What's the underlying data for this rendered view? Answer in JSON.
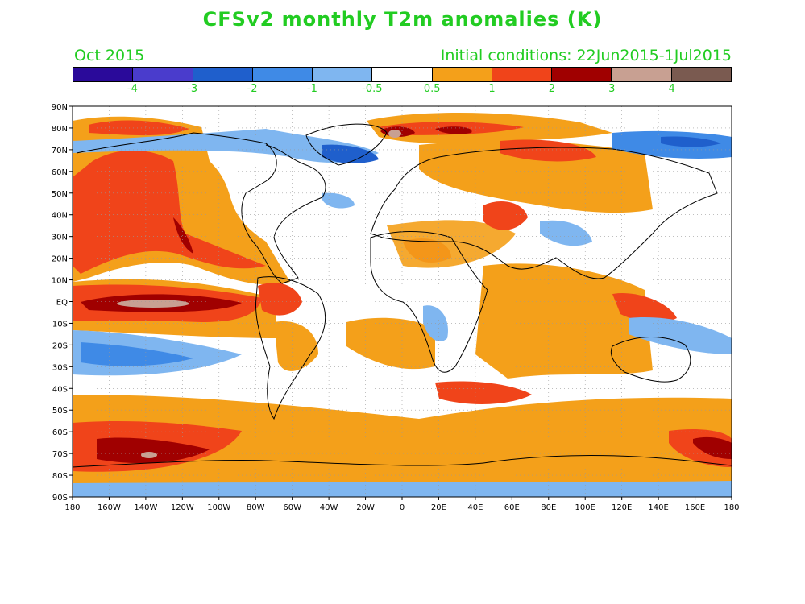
{
  "title": "CFSv2 monthly T2m anomalies (K)",
  "valid_month": "Oct 2015",
  "initial_conditions": "Initial conditions: 22Jun2015-1Jul2015",
  "colorbar": {
    "colors": [
      "#2a0a9a",
      "#4a3ccc",
      "#1f5fcc",
      "#3f8ae6",
      "#7fb6f0",
      "#ffffff",
      "#f4a01a",
      "#f0441a",
      "#a00000",
      "#c8a092",
      "#7a5a50"
    ],
    "labels": [
      "-4",
      "-3",
      "-2",
      "-1",
      "-0.5",
      "0.5",
      "1",
      "2",
      "3",
      "4"
    ]
  },
  "map": {
    "lat_labels": [
      "90N",
      "80N",
      "70N",
      "60N",
      "50N",
      "40N",
      "30N",
      "20N",
      "10N",
      "EQ",
      "10S",
      "20S",
      "30S",
      "40S",
      "50S",
      "60S",
      "70S",
      "80S",
      "90S"
    ],
    "lon_labels": [
      "180",
      "160W",
      "140W",
      "120W",
      "100W",
      "80W",
      "60W",
      "40W",
      "20W",
      "0",
      "20E",
      "40E",
      "60E",
      "80E",
      "100E",
      "120E",
      "140E",
      "160E",
      "180"
    ],
    "anomaly_palette": {
      "warm_1": "#f4a01a",
      "warm_2": "#f0441a",
      "warm_3": "#a00000",
      "warm_4": "#c8a092",
      "cool_1": "#7fb6f0",
      "cool_2": "#3f8ae6",
      "cool_3": "#1f5fcc"
    }
  }
}
